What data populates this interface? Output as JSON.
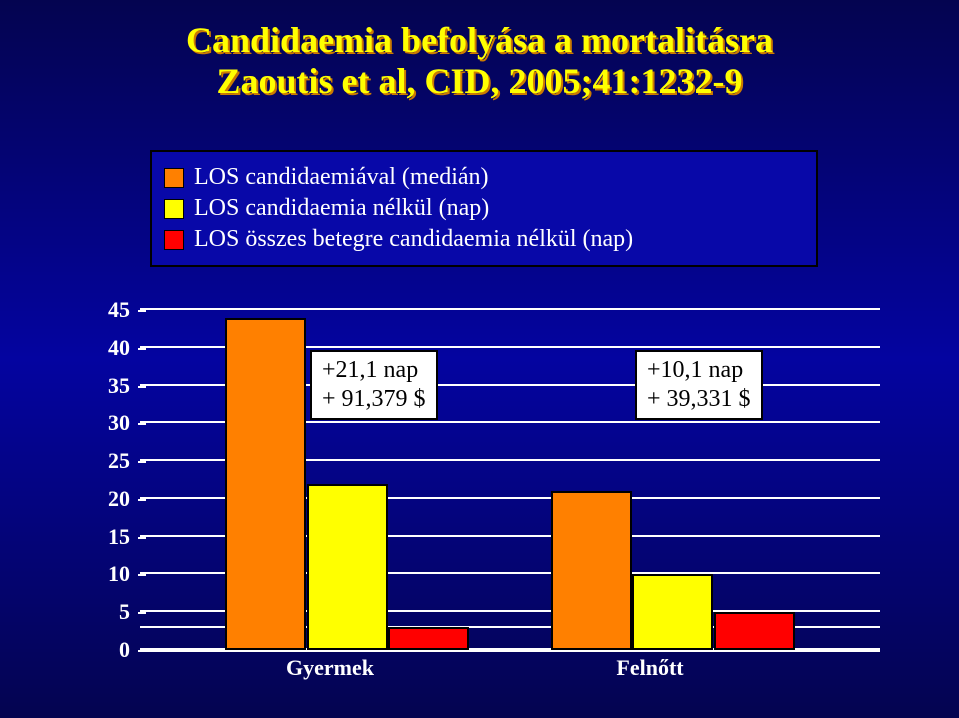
{
  "title": {
    "line1": "Candidaemia befolyása a mortalitásra",
    "line2": "Zaoutis et al, CID, 2005;41:1232-9",
    "fontsize": 36,
    "colors": {
      "fill": "#ffff00",
      "shadow": "#cc7a00"
    }
  },
  "legend": {
    "fontsize": 24,
    "text_color": "#ffffff",
    "border_color": "#000000",
    "items": [
      {
        "label": "LOS candidaemiával (medián)",
        "color": "#ff8000"
      },
      {
        "label": "LOS candidaemia nélkül (nap)",
        "color": "#ffff00"
      },
      {
        "label": "LOS összes betegre candidaemia nélkül (nap)",
        "color": "#ff0000"
      }
    ]
  },
  "chart": {
    "type": "bar",
    "background_color": "transparent",
    "axis_color": "#ffffff",
    "grid_color": "#ffffff",
    "ylim": [
      0,
      45
    ],
    "ytick_step": 5,
    "tick_fontsize": 22,
    "tick_color": "#ffffff",
    "tick_fontweight": "bold",
    "bar_border_color": "#000000",
    "categories": [
      {
        "name": "Gyermek",
        "values": [
          44,
          22,
          3
        ],
        "colors": [
          "#ff8000",
          "#ffff00",
          "#ff0000"
        ]
      },
      {
        "name": "Felnőtt",
        "values": [
          21,
          10,
          5
        ],
        "colors": [
          "#ff8000",
          "#ffff00",
          "#ff0000"
        ]
      }
    ],
    "category_fontsize": 22,
    "bar_width_ratio": 0.11,
    "annotations": [
      {
        "line1": "+21,1 nap",
        "line2": "+ 91,379 $",
        "fontsize": 24,
        "bg": "#ffffff",
        "fg": "#000000"
      },
      {
        "line1": "+10,1 nap",
        "line2": "+ 39,331 $",
        "fontsize": 24,
        "bg": "#ffffff",
        "fg": "#000000"
      }
    ]
  }
}
